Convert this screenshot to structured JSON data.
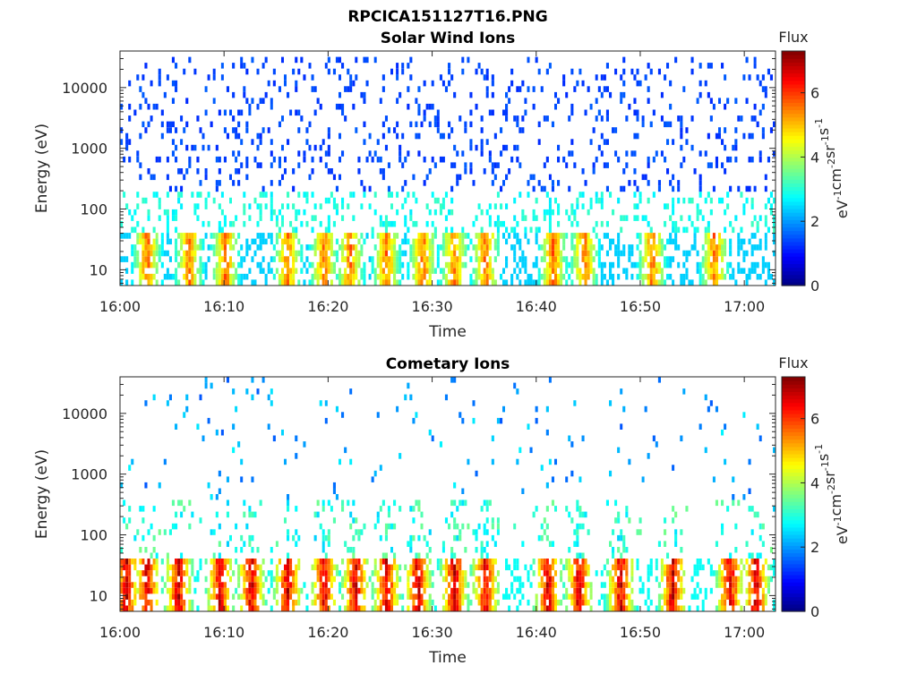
{
  "figure": {
    "title": "RPCICA151127T16.PNG"
  },
  "chart_data": [
    {
      "type": "heatmap",
      "title": "Solar Wind Ions",
      "xlabel": "Time",
      "ylabel": "Energy (eV)",
      "x_ticks": [
        "16:00",
        "16:10",
        "16:20",
        "16:30",
        "16:40",
        "16:50",
        "17:00"
      ],
      "x_range_minutes": [
        0,
        63
      ],
      "y_scale": "log",
      "y_range": [
        5.5,
        40000
      ],
      "y_ticks": [
        10,
        100,
        1000,
        10000
      ],
      "y_tick_labels": [
        "10",
        "100",
        "1000",
        "10000"
      ],
      "colorbar": {
        "title": "Flux",
        "range": [
          0,
          7.3
        ],
        "ticks": [
          0,
          2,
          4,
          6
        ],
        "unit_base": "eV",
        "unit_parts": [
          {
            "base": "eV",
            "exp": "-1"
          },
          {
            "base": "cm",
            "exp": "-2"
          },
          {
            "base": "sr",
            "exp": "-1"
          },
          {
            "base": "s",
            "exp": "-1"
          }
        ],
        "colormap": "jet"
      },
      "features": {
        "low_energy_band_eV": [
          6,
          40
        ],
        "low_energy_peak_flux": 6.3,
        "scattered_high_energy_eV": [
          200,
          30000
        ],
        "high_energy_flux": 1.2,
        "mid_energy_flux": 2.6,
        "burst_times_minutes": [
          2.5,
          6.5,
          10.0,
          16.0,
          19.5,
          22.0,
          25.5,
          29.0,
          32.0,
          35.0,
          41.5,
          44.5,
          51.0,
          57.0
        ]
      }
    },
    {
      "type": "heatmap",
      "title": "Cometary Ions",
      "xlabel": "Time",
      "ylabel": "Energy (eV)",
      "x_ticks": [
        "16:00",
        "16:10",
        "16:20",
        "16:30",
        "16:40",
        "16:50",
        "17:00"
      ],
      "x_range_minutes": [
        0,
        63
      ],
      "y_scale": "log",
      "y_range": [
        5.5,
        40000
      ],
      "y_ticks": [
        10,
        100,
        1000,
        10000
      ],
      "y_tick_labels": [
        "10",
        "100",
        "1000",
        "10000"
      ],
      "colorbar": {
        "title": "Flux",
        "range": [
          0,
          7.3
        ],
        "ticks": [
          0,
          2,
          4,
          6
        ],
        "colormap": "jet"
      },
      "features": {
        "low_energy_band_eV": [
          6,
          42
        ],
        "low_energy_peak_flux": 7.1,
        "sparse_high_energy_eV": [
          150,
          35000
        ],
        "high_energy_flux": 1.5,
        "burst_times_minutes": [
          0.5,
          2.5,
          5.5,
          9.5,
          12.5,
          16.0,
          19.5,
          22.5,
          25.5,
          28.5,
          32.0,
          35.0,
          41.0,
          44.0,
          48.0,
          53.0,
          58.5,
          61.0
        ]
      }
    }
  ]
}
